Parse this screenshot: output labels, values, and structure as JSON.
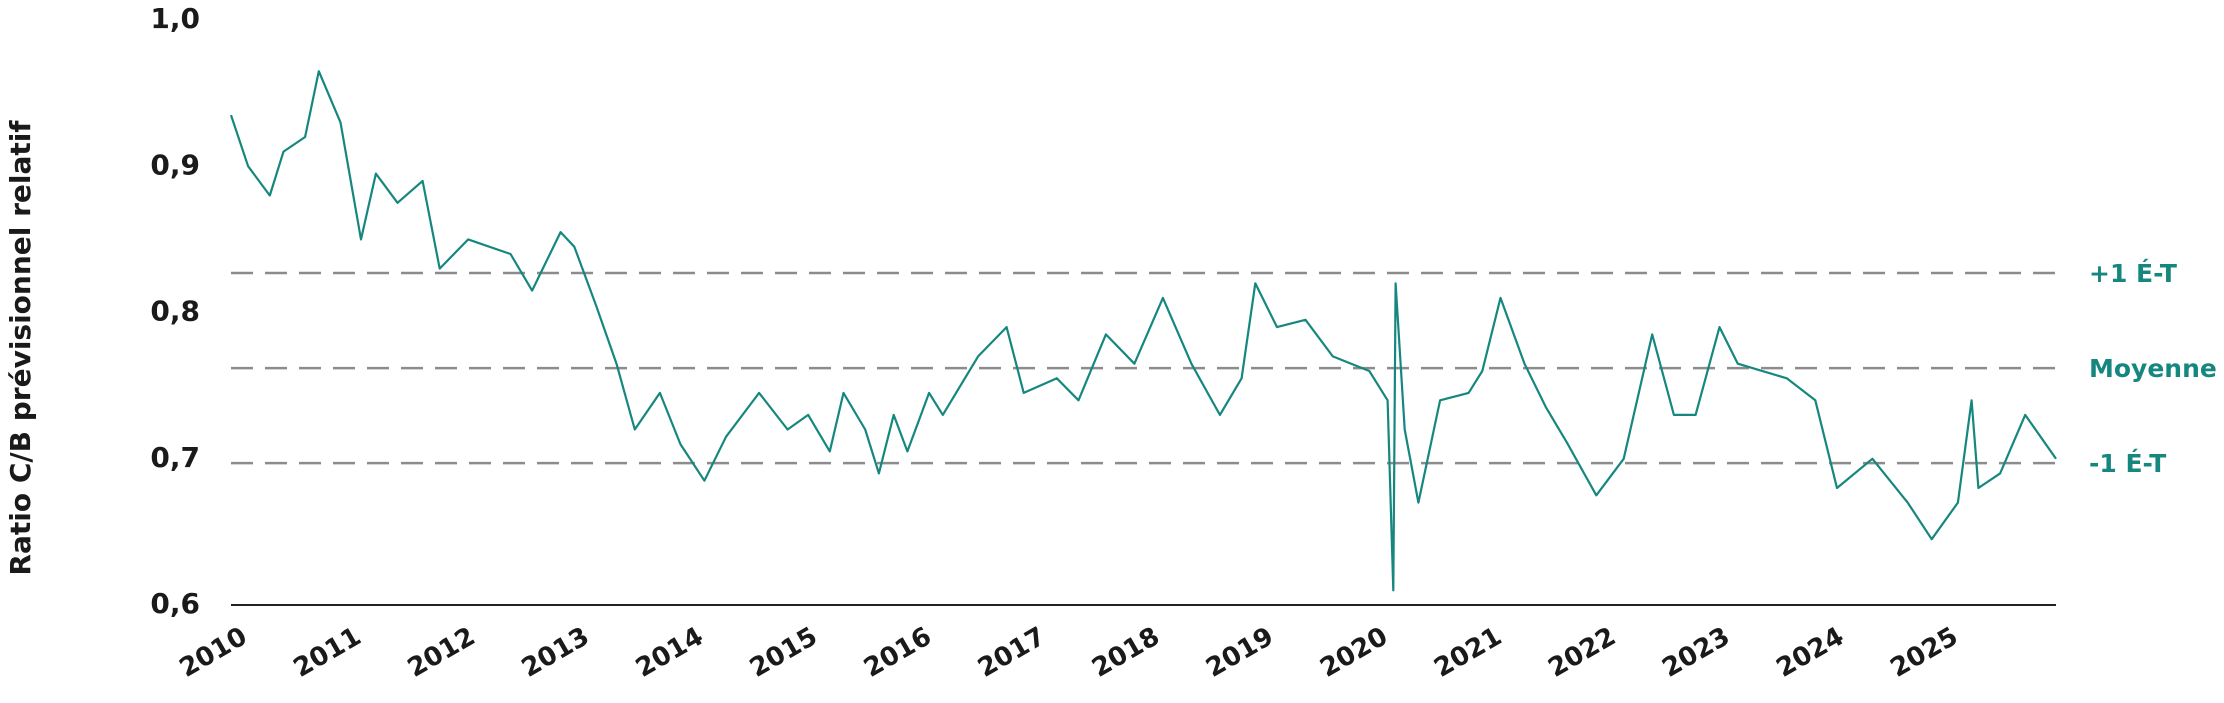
{
  "chart_data": {
    "type": "line",
    "y_label": "Ratio C/B prévisionnel relatif",
    "x": [
      2010.0,
      2010.15,
      2010.34,
      2010.46,
      2010.65,
      2010.77,
      2010.96,
      2011.14,
      2011.27,
      2011.46,
      2011.68,
      2011.83,
      2012.08,
      2012.45,
      2012.64,
      2012.89,
      2013.01,
      2013.2,
      2013.38,
      2013.54,
      2013.76,
      2013.94,
      2014.15,
      2014.34,
      2014.63,
      2014.88,
      2015.06,
      2015.25,
      2015.37,
      2015.56,
      2015.68,
      2015.81,
      2015.93,
      2016.12,
      2016.24,
      2016.55,
      2016.8,
      2016.95,
      2017.24,
      2017.43,
      2017.67,
      2017.92,
      2018.17,
      2018.42,
      2018.67,
      2018.86,
      2018.98,
      2019.17,
      2019.42,
      2019.66,
      2019.98,
      2020.14,
      2020.19,
      2020.21,
      2020.29,
      2020.41,
      2020.6,
      2020.85,
      2020.97,
      2021.13,
      2021.34,
      2021.53,
      2021.72,
      2021.97,
      2022.21,
      2022.46,
      2022.65,
      2022.84,
      2023.05,
      2023.21,
      2023.64,
      2023.89,
      2024.08,
      2024.39,
      2024.7,
      2024.91,
      2025.14,
      2025.26,
      2025.32,
      2025.51,
      2025.73,
      2026.0
    ],
    "series": [
      {
        "color": "#16877f",
        "values": [
          0.935,
          0.9,
          0.88,
          0.91,
          0.92,
          0.965,
          0.93,
          0.85,
          0.895,
          0.875,
          0.89,
          0.83,
          0.85,
          0.84,
          0.815,
          0.855,
          0.845,
          0.805,
          0.765,
          0.72,
          0.745,
          0.71,
          0.685,
          0.715,
          0.745,
          0.72,
          0.73,
          0.705,
          0.745,
          0.72,
          0.69,
          0.73,
          0.705,
          0.745,
          0.73,
          0.77,
          0.79,
          0.745,
          0.755,
          0.74,
          0.785,
          0.765,
          0.81,
          0.765,
          0.73,
          0.755,
          0.82,
          0.79,
          0.795,
          0.77,
          0.76,
          0.74,
          0.61,
          0.82,
          0.72,
          0.67,
          0.74,
          0.745,
          0.76,
          0.81,
          0.765,
          0.735,
          0.71,
          0.675,
          0.7,
          0.785,
          0.73,
          0.73,
          0.79,
          0.765,
          0.755,
          0.74,
          0.68,
          0.7,
          0.67,
          0.645,
          0.67,
          0.74,
          0.68,
          0.69,
          0.73,
          0.7
        ]
      }
    ],
    "reference_lines": [
      {
        "label": "+1 É-T",
        "value": 0.827
      },
      {
        "label": "Moyenne",
        "value": 0.762
      },
      {
        "label": "-1 É-T",
        "value": 0.697
      }
    ],
    "reference_color": "#8c8c8c",
    "xlim": [
      2010,
      2026
    ],
    "xticks": [
      2010,
      2011,
      2012,
      2013,
      2014,
      2015,
      2016,
      2017,
      2018,
      2019,
      2020,
      2021,
      2022,
      2023,
      2024,
      2025
    ],
    "ylim": [
      0.6,
      1.0
    ],
    "yticks": [
      {
        "value": 0.6,
        "label": "0,6"
      },
      {
        "value": 0.7,
        "label": "0,7"
      },
      {
        "value": 0.8,
        "label": "0,8"
      },
      {
        "value": 0.9,
        "label": "0,9"
      },
      {
        "value": 1.0,
        "label": "1,0"
      }
    ]
  }
}
